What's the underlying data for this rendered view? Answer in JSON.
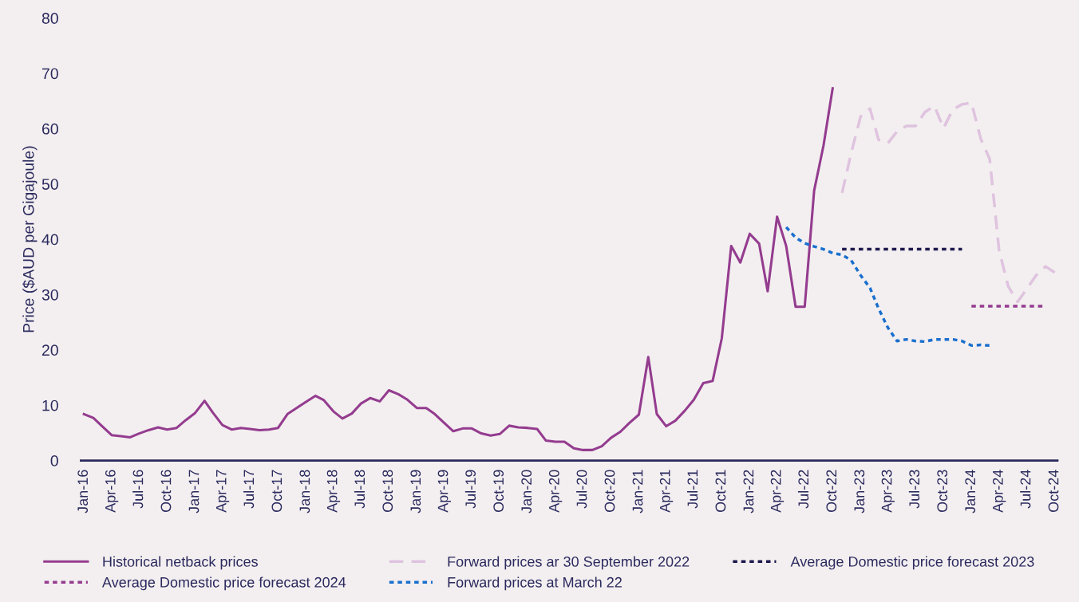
{
  "chart_data": {
    "type": "line",
    "ylabel": "Price ($AUD per Gigajoule)",
    "ylim": [
      0,
      80
    ],
    "yticks": [
      0,
      10,
      20,
      30,
      40,
      50,
      60,
      70,
      80
    ],
    "xlim": [
      "2015-12-22",
      "2024-10-10"
    ],
    "xticks": [
      {
        "value": "2016-01",
        "label": "Jan-16"
      },
      {
        "value": "2016-04",
        "label": "Apr-16"
      },
      {
        "value": "2016-07",
        "label": "Jul-16"
      },
      {
        "value": "2016-10",
        "label": "Oct-16"
      },
      {
        "value": "2017-01",
        "label": "Jan-17"
      },
      {
        "value": "2017-04",
        "label": "Apr-17"
      },
      {
        "value": "2017-07",
        "label": "Jul-17"
      },
      {
        "value": "2017-10",
        "label": "Oct-17"
      },
      {
        "value": "2018-01",
        "label": "Jan-18"
      },
      {
        "value": "2018-04",
        "label": "Apr-18"
      },
      {
        "value": "2018-07",
        "label": "Jul-18"
      },
      {
        "value": "2018-10",
        "label": "Oct-18"
      },
      {
        "value": "2019-01",
        "label": "Jan-19"
      },
      {
        "value": "2019-04",
        "label": "Apr-19"
      },
      {
        "value": "2019-07",
        "label": "Jul-19"
      },
      {
        "value": "2019-10",
        "label": "Oct-19"
      },
      {
        "value": "2020-01",
        "label": "Jan-20"
      },
      {
        "value": "2020-04",
        "label": "Apr-20"
      },
      {
        "value": "2020-07",
        "label": "Jul-20"
      },
      {
        "value": "2020-10",
        "label": "Oct-20"
      },
      {
        "value": "2021-01",
        "label": "Jan-21"
      },
      {
        "value": "2021-04",
        "label": "Apr-21"
      },
      {
        "value": "2021-07",
        "label": "Jul-21"
      },
      {
        "value": "2021-10",
        "label": "Oct-21"
      },
      {
        "value": "2022-01",
        "label": "Jan-22"
      },
      {
        "value": "2022-04",
        "label": "Apr-22"
      },
      {
        "value": "2022-07",
        "label": "Jul-22"
      },
      {
        "value": "2022-10",
        "label": "Oct-22"
      },
      {
        "value": "2023-01",
        "label": "Jan-23"
      },
      {
        "value": "2023-04",
        "label": "Apr-23"
      },
      {
        "value": "2023-07",
        "label": "Jul-23"
      },
      {
        "value": "2023-10",
        "label": "Oct-23"
      },
      {
        "value": "2024-01",
        "label": "Jan-24"
      },
      {
        "value": "2024-04",
        "label": "Apr-24"
      },
      {
        "value": "2024-07",
        "label": "Jul-24"
      },
      {
        "value": "2024-10",
        "label": "Oct-24"
      }
    ],
    "grid": false,
    "legend": "bottom",
    "marker": "none",
    "series": [
      {
        "name": "Historical netback prices",
        "color": "#943c8f",
        "line_style": "solid",
        "x": [
          "2016-01",
          "2016-02",
          "2016-03",
          "2016-04",
          "2016-05",
          "2016-06",
          "2016-07",
          "2016-08",
          "2016-09",
          "2016-10",
          "2016-11",
          "2016-12",
          "2017-01",
          "2017-02",
          "2017-03",
          "2017-04",
          "2017-05",
          "2017-06",
          "2017-07",
          "2017-08",
          "2017-09",
          "2017-10",
          "2017-11",
          "2017-12",
          "2018-01",
          "2018-02",
          "2018-03",
          "2018-04",
          "2018-05",
          "2018-06",
          "2018-07",
          "2018-08",
          "2018-09",
          "2018-10",
          "2018-11",
          "2018-12",
          "2019-01",
          "2019-02",
          "2019-03",
          "2019-04",
          "2019-05",
          "2019-06",
          "2019-07",
          "2019-08",
          "2019-09",
          "2019-10",
          "2019-11",
          "2019-12",
          "2020-01",
          "2020-02",
          "2020-03",
          "2020-04",
          "2020-05",
          "2020-06",
          "2020-07",
          "2020-08",
          "2020-09",
          "2020-10",
          "2020-11",
          "2020-12",
          "2021-01",
          "2021-02",
          "2021-03",
          "2021-04",
          "2021-05",
          "2021-06",
          "2021-07",
          "2021-08",
          "2021-09",
          "2021-10",
          "2021-11",
          "2021-12",
          "2022-01",
          "2022-02",
          "2022-03",
          "2022-04",
          "2022-05",
          "2022-06",
          "2022-07",
          "2022-08",
          "2022-09",
          "2022-10"
        ],
        "values": [
          8.4,
          7.7,
          6.2,
          4.6,
          4.4,
          4.2,
          4.9,
          5.5,
          6.0,
          5.6,
          5.9,
          7.3,
          8.6,
          10.8,
          8.6,
          6.4,
          5.6,
          5.9,
          5.7,
          5.5,
          5.6,
          5.9,
          8.4,
          9.5,
          10.6,
          11.7,
          10.9,
          8.9,
          7.6,
          8.5,
          10.3,
          11.3,
          10.7,
          12.7,
          12.0,
          11.0,
          9.5,
          9.5,
          8.4,
          6.8,
          5.3,
          5.8,
          5.8,
          4.9,
          4.5,
          4.8,
          6.3,
          6.0,
          5.9,
          5.7,
          3.6,
          3.4,
          3.4,
          2.2,
          1.9,
          1.9,
          2.6,
          4.1,
          5.2,
          6.8,
          8.3,
          18.7,
          8.4,
          6.2,
          7.2,
          9.0,
          11.0,
          14.0,
          14.4,
          22.1,
          38.8,
          35.8,
          41.0,
          39.2,
          30.6,
          44.1,
          38.8,
          27.8,
          27.8,
          48.8,
          57.0,
          67.3
        ]
      },
      {
        "name": "Forward prices ar 30 September 2022",
        "color": "#dfc3df",
        "line_style": "dashed",
        "x": [
          "2022-11",
          "2022-12",
          "2023-01",
          "2023-02",
          "2023-03",
          "2023-04",
          "2023-05",
          "2023-06",
          "2023-07",
          "2023-08",
          "2023-09",
          "2023-10",
          "2023-11",
          "2023-12",
          "2024-01",
          "2024-02",
          "2024-03",
          "2024-04",
          "2024-05",
          "2024-06",
          "2024-07",
          "2024-08",
          "2024-09",
          "2024-10"
        ],
        "values": [
          48.4,
          55.6,
          62.2,
          63.6,
          58.0,
          57.4,
          59.5,
          60.5,
          60.5,
          63.0,
          64.1,
          60.1,
          63.5,
          64.4,
          64.7,
          58.1,
          54.5,
          38.0,
          31.5,
          28.7,
          31.0,
          33.5,
          35.1,
          34.0
        ]
      },
      {
        "name": "Average Domestic price forecast 2023",
        "color": "#1f1a4d",
        "line_style": "dotted",
        "x": [
          "2022-11",
          "2023-12"
        ],
        "values": [
          38.2,
          38.2
        ]
      },
      {
        "name": "Average Domestic price forecast 2024",
        "color": "#943c8f",
        "line_style": "dotted",
        "x": [
          "2024-01",
          "2024-09"
        ],
        "values": [
          27.9,
          27.9
        ]
      },
      {
        "name": "Forward prices at March 22",
        "color": "#1a6fce",
        "line_style": "dotted",
        "x": [
          "2022-05",
          "2022-06",
          "2022-07",
          "2022-08",
          "2022-09",
          "2022-10",
          "2022-11",
          "2022-12",
          "2023-01",
          "2023-02",
          "2023-03",
          "2023-04",
          "2023-05",
          "2023-06",
          "2023-07",
          "2023-08",
          "2023-09",
          "2023-10",
          "2023-11",
          "2023-12",
          "2024-01",
          "2024-02",
          "2024-03"
        ],
        "values": [
          42.2,
          40.3,
          39.3,
          38.7,
          38.2,
          37.5,
          37.2,
          36.2,
          33.5,
          31.2,
          27.5,
          24.0,
          21.6,
          21.9,
          21.6,
          21.5,
          21.9,
          21.9,
          21.9,
          21.6,
          20.8,
          20.9,
          20.8
        ]
      }
    ]
  }
}
